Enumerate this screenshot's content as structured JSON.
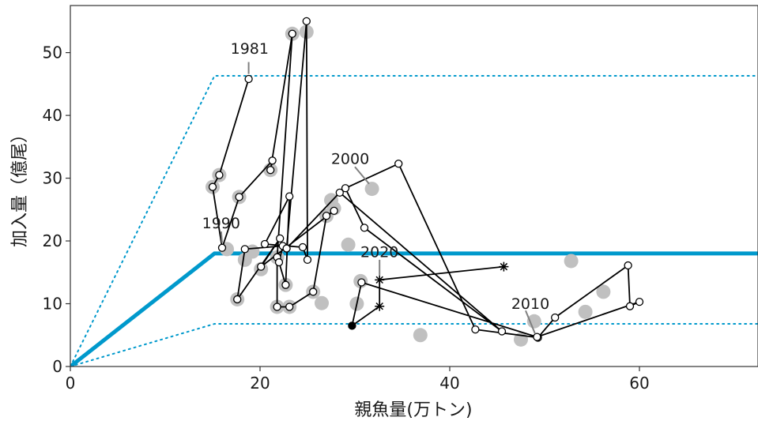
{
  "chart_data": {
    "type": "scatter",
    "title": "",
    "xlabel": "親魚量(万トン)",
    "ylabel": "加入量（億尾）",
    "xlim": [
      0,
      72.5
    ],
    "ylim": [
      0,
      57.5
    ],
    "x_ticks": [
      0,
      20,
      40,
      60
    ],
    "y_ticks": [
      0,
      10,
      20,
      30,
      40,
      50
    ],
    "colors": {
      "hockey_stick": "#0099cc",
      "band": "#0099cc",
      "trajectory": "#000000",
      "grey_points": "#c0c0c0",
      "frame": "#333333"
    },
    "hockey_stick": [
      [
        0,
        0
      ],
      [
        15.2,
        18.0
      ],
      [
        72.5,
        18.0
      ]
    ],
    "upper_band": [
      [
        0,
        0
      ],
      [
        15.2,
        46.3
      ],
      [
        72.5,
        46.3
      ]
    ],
    "lower_band": [
      [
        0,
        0
      ],
      [
        15.2,
        6.8
      ],
      [
        72.5,
        6.8
      ]
    ],
    "grey_points": [
      [
        19.2,
        18.3
      ],
      [
        24.9,
        53.3
      ],
      [
        23.4,
        53.0
      ],
      [
        15.7,
        30.5
      ],
      [
        15.0,
        28.6
      ],
      [
        21.1,
        31.3
      ],
      [
        17.8,
        27.0
      ],
      [
        16.5,
        18.7
      ],
      [
        21.8,
        17.4
      ],
      [
        18.4,
        17.0
      ],
      [
        20.1,
        15.5
      ],
      [
        22.7,
        13.0
      ],
      [
        21.8,
        9.5
      ],
      [
        23.1,
        9.5
      ],
      [
        17.6,
        10.7
      ],
      [
        25.6,
        11.9
      ],
      [
        26.5,
        10.1
      ],
      [
        27.0,
        24.0
      ],
      [
        27.8,
        25.2
      ],
      [
        27.5,
        26.5
      ],
      [
        31.8,
        28.3
      ],
      [
        29.3,
        19.4
      ],
      [
        30.6,
        13.6
      ],
      [
        30.2,
        10.0
      ],
      [
        36.9,
        5.0
      ],
      [
        47.5,
        4.3
      ],
      [
        48.9,
        7.2
      ],
      [
        52.8,
        16.8
      ],
      [
        56.2,
        11.9
      ],
      [
        54.3,
        8.7
      ]
    ],
    "trajectory": [
      [
        18.8,
        45.8
      ],
      [
        15.7,
        30.5
      ],
      [
        15.0,
        28.6
      ],
      [
        16.0,
        18.9
      ],
      [
        17.8,
        27.0
      ],
      [
        21.3,
        32.8
      ],
      [
        21.1,
        31.3
      ],
      [
        23.4,
        53.0
      ],
      [
        21.8,
        17.4
      ],
      [
        21.8,
        9.5
      ],
      [
        23.1,
        9.5
      ],
      [
        25.6,
        11.9
      ],
      [
        27.0,
        24.0
      ],
      [
        27.8,
        24.8
      ],
      [
        20.1,
        15.9
      ],
      [
        22.1,
        20.4
      ],
      [
        17.6,
        10.7
      ],
      [
        18.4,
        18.7
      ],
      [
        22.4,
        19.2
      ],
      [
        22.0,
        16.6
      ],
      [
        22.7,
        13.0
      ],
      [
        23.1,
        27.1
      ],
      [
        20.5,
        19.5
      ],
      [
        24.5,
        19.0
      ],
      [
        25.0,
        17.0
      ],
      [
        24.9,
        55.0
      ],
      [
        22.8,
        18.8
      ],
      [
        28.4,
        27.7
      ],
      [
        45.5,
        5.6
      ],
      [
        31.0,
        22.1
      ],
      [
        29.0,
        28.4
      ],
      [
        34.6,
        32.3
      ],
      [
        42.7,
        5.9
      ],
      [
        49.3,
        4.6
      ],
      [
        51.1,
        7.8
      ],
      [
        58.8,
        16.1
      ],
      [
        59.0,
        9.6
      ],
      [
        60.0,
        10.3
      ],
      [
        49.2,
        4.7
      ],
      [
        30.7,
        13.4
      ],
      [
        29.7,
        6.5
      ]
    ],
    "estimate_markers": [
      [
        32.6,
        9.6
      ],
      [
        32.6,
        13.8
      ],
      [
        45.7,
        15.9
      ]
    ],
    "estimate_segments": [
      [
        [
          29.7,
          6.5
        ],
        [
          32.6,
          9.6
        ]
      ],
      [
        [
          32.6,
          9.6
        ],
        [
          32.6,
          13.8
        ]
      ],
      [
        [
          32.6,
          13.8
        ],
        [
          45.7,
          15.9
        ]
      ]
    ],
    "final_point": [
      29.7,
      6.5
    ],
    "year_annotations": [
      {
        "label": "1981",
        "x": 18.8,
        "y": 45.8
      },
      {
        "label": "1990",
        "x": 16.0,
        "y": 18.9
      },
      {
        "label": "2000",
        "x": 31.8,
        "y": 28.5
      },
      {
        "label": "2010",
        "x": 49.3,
        "y": 4.6
      },
      {
        "label": "2020",
        "x": 32.6,
        "y": 13.8
      }
    ]
  }
}
